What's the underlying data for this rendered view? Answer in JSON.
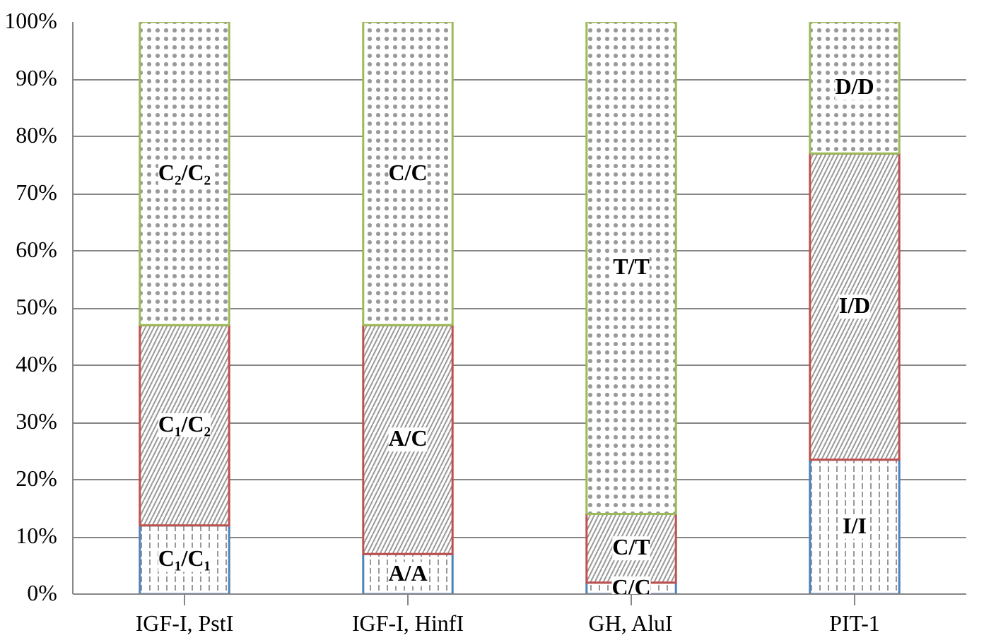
{
  "chart_data": {
    "type": "bar",
    "stacked": true,
    "categories": [
      "IGF-I, PstI",
      "IGF-I, HinfI",
      "GH, AluI",
      "PIT-1"
    ],
    "series": [
      {
        "color": "#4f81bd",
        "values": [
          12,
          7,
          2,
          23.5
        ],
        "value_labels": [
          "C₁/C₁",
          "A/A",
          "C/C",
          "I/I"
        ]
      },
      {
        "color": "#c0504d",
        "values": [
          35,
          40,
          12,
          53.5
        ],
        "value_labels": [
          "C₁/C₂",
          "A/C",
          "C/T",
          "I/D"
        ]
      },
      {
        "color": "#9bbb59",
        "values": [
          53,
          53,
          86,
          23
        ],
        "value_labels": [
          "C₂/C₂",
          "C/C",
          "T/T",
          "D/D"
        ]
      }
    ],
    "ylim": [
      0,
      100
    ],
    "yticks": [
      {
        "value": 0,
        "label": "0%"
      },
      {
        "value": 10,
        "label": "10%"
      },
      {
        "value": 20,
        "label": "20%"
      },
      {
        "value": 30,
        "label": "30%"
      },
      {
        "value": 40,
        "label": "40%"
      },
      {
        "value": 50,
        "label": "50%"
      },
      {
        "value": 60,
        "label": "60%"
      },
      {
        "value": 70,
        "label": "70%"
      },
      {
        "value": 80,
        "label": "80%"
      },
      {
        "value": 90,
        "label": "90%"
      },
      {
        "value": 100,
        "label": "100%"
      }
    ],
    "grid": "y"
  }
}
